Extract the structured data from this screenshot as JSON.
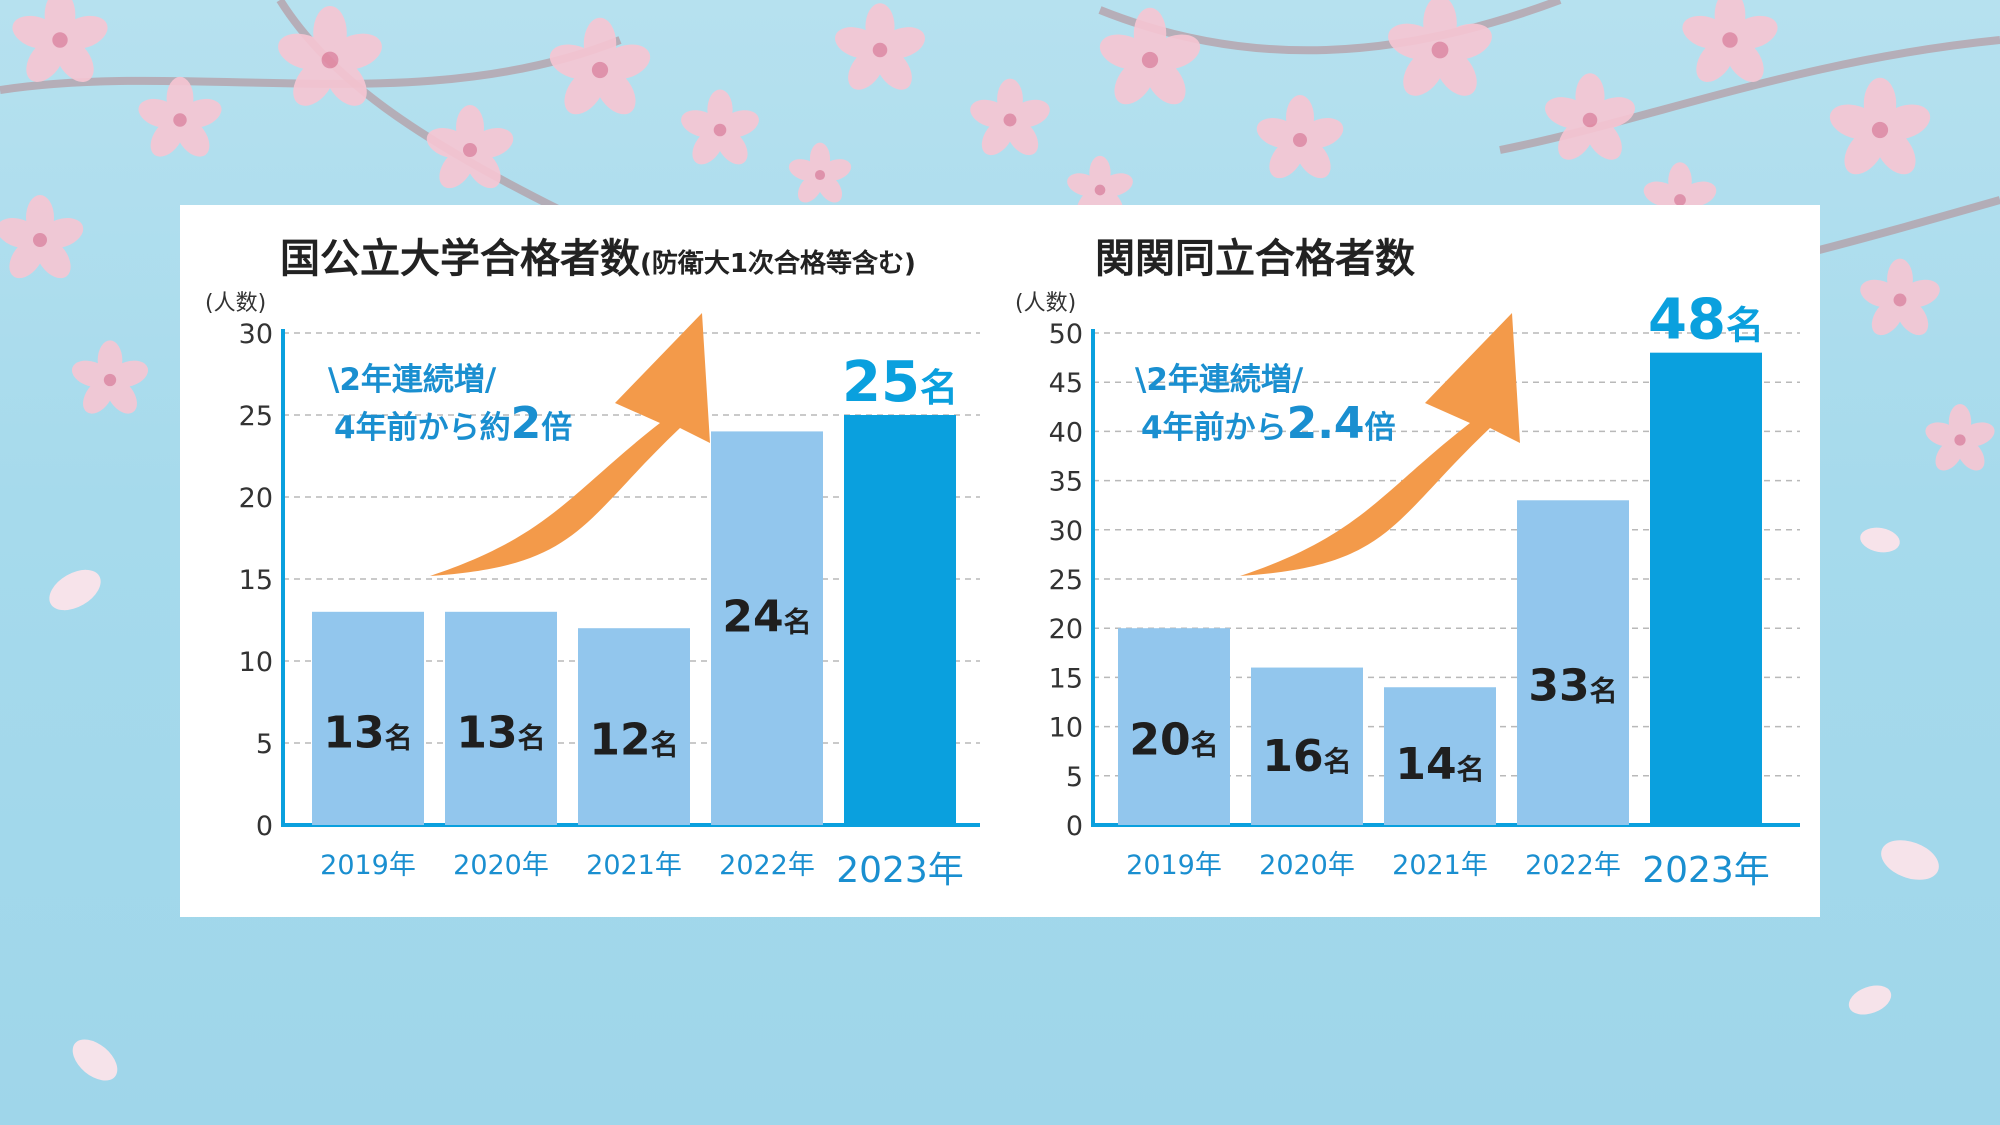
{
  "colors": {
    "bar": "#92c6ed",
    "bar_highlight": "#0aa0de",
    "axis": "#0aa0de",
    "label_blue": "#1a8fd0",
    "arrow": "#f39a4a",
    "background": "#a6daec",
    "petal": "#f7c6d3"
  },
  "chart_data": [
    {
      "type": "bar",
      "title": "国公立大学合格者数",
      "subtitle": "(防衛大1次合格等含む)",
      "ylabel": "(人数)",
      "ylim": [
        0,
        30
      ],
      "yticks": [
        0,
        5,
        10,
        15,
        20,
        25,
        30
      ],
      "grid": true,
      "categories": [
        "2019年",
        "2020年",
        "2021年",
        "2022年",
        "2023年"
      ],
      "values": [
        13,
        13,
        12,
        24,
        25
      ],
      "value_labels": [
        "13",
        "13",
        "12",
        "24",
        "25"
      ],
      "value_unit": "名",
      "highlight_index": 4,
      "annotation": {
        "line1": "\\2年連続増/",
        "line2_prefix": "4年前から約",
        "line2_value": "2",
        "line2_suffix": "倍"
      }
    },
    {
      "type": "bar",
      "title": "関関同立合格者数",
      "subtitle": "",
      "ylabel": "(人数)",
      "ylim": [
        0,
        50
      ],
      "yticks": [
        0,
        5,
        10,
        15,
        20,
        25,
        30,
        35,
        40,
        45,
        50
      ],
      "grid": true,
      "categories": [
        "2019年",
        "2020年",
        "2021年",
        "2022年",
        "2023年"
      ],
      "values": [
        20,
        16,
        14,
        33,
        48
      ],
      "value_labels": [
        "20",
        "16",
        "14",
        "33",
        "48"
      ],
      "value_unit": "名",
      "highlight_index": 4,
      "annotation": {
        "line1": "\\2年連続増/",
        "line2_prefix": "4年前から",
        "line2_value": "2.4",
        "line2_suffix": "倍"
      }
    }
  ]
}
